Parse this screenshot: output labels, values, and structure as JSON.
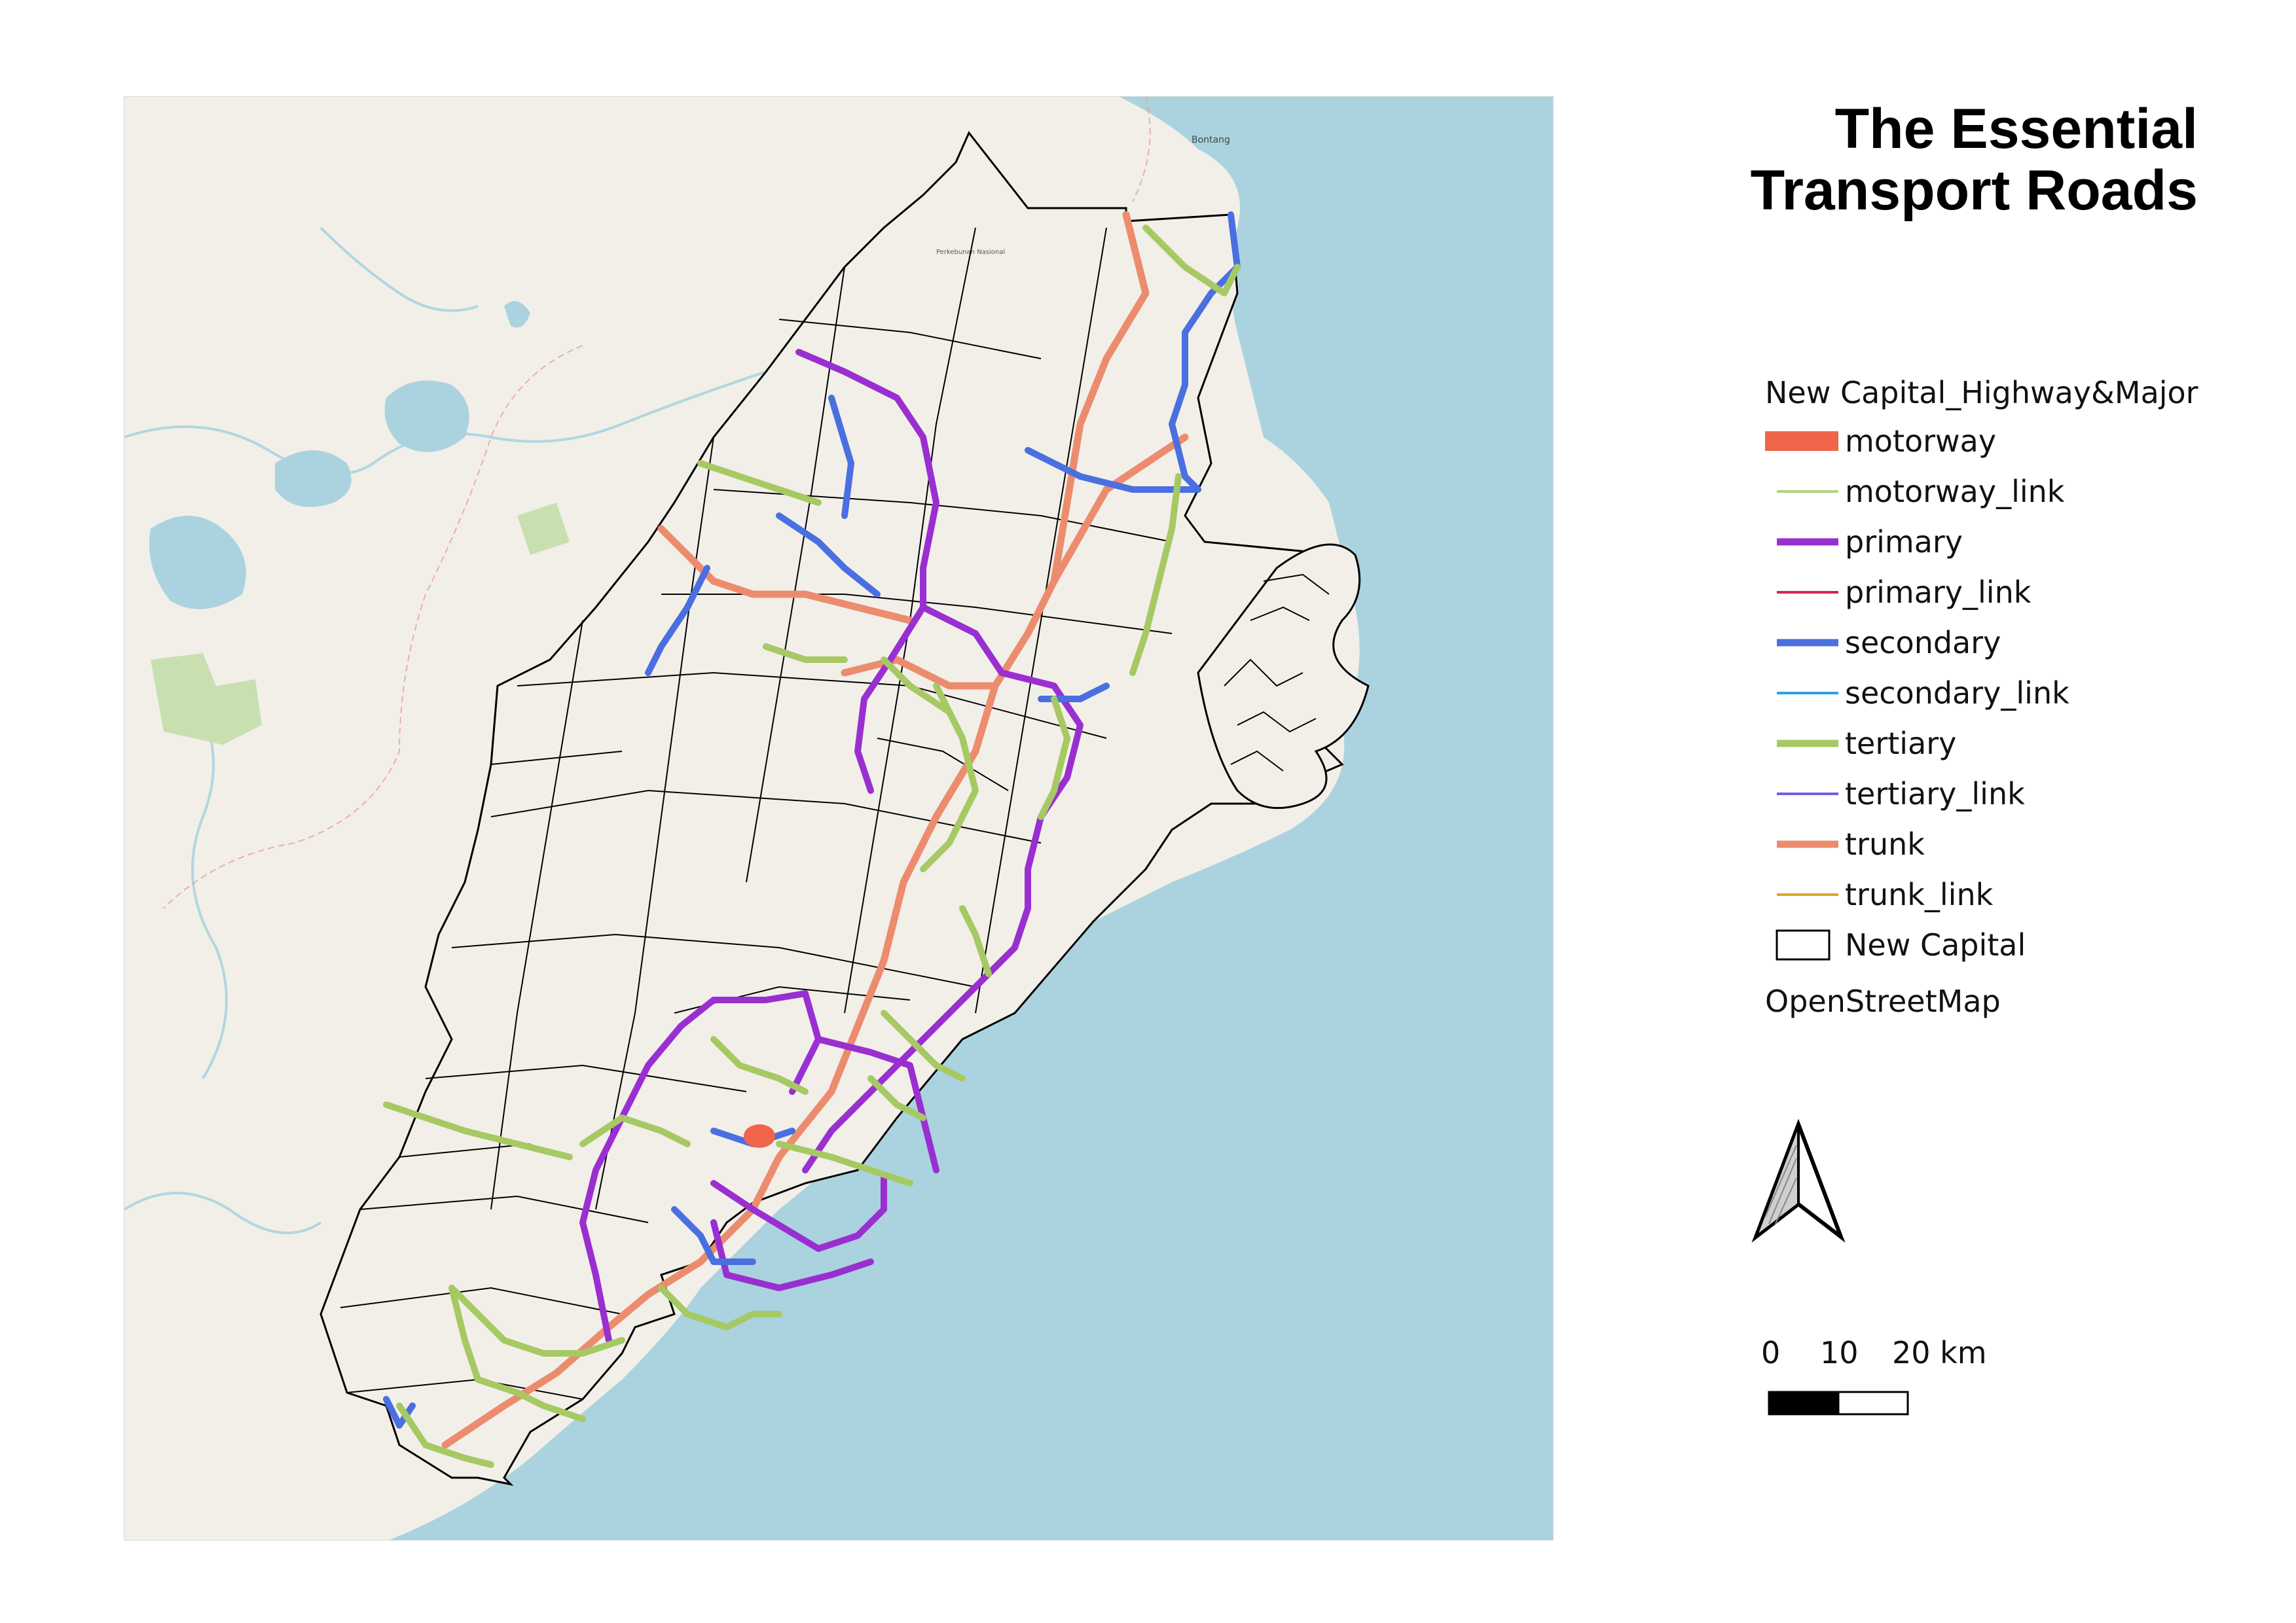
{
  "title": "The Essential\nTransport Roads",
  "legend": {
    "layer_title": "New Capital_Highway&Major",
    "items": [
      {
        "label": "motorway",
        "color": "#f0654a",
        "style": "block"
      },
      {
        "label": "motorway_link",
        "color": "#b5d17a",
        "style": "thin"
      },
      {
        "label": "primary",
        "color": "#9a2fd1",
        "style": "thick"
      },
      {
        "label": "primary_link",
        "color": "#d62250",
        "style": "thin"
      },
      {
        "label": "secondary",
        "color": "#4a6fe0",
        "style": "thick"
      },
      {
        "label": "secondary_link",
        "color": "#2aa5e0",
        "style": "thin"
      },
      {
        "label": "tertiary",
        "color": "#a6c964",
        "style": "thick"
      },
      {
        "label": "tertiary_link",
        "color": "#7a5ae0",
        "style": "thin"
      },
      {
        "label": "trunk",
        "color": "#ec8c6e",
        "style": "thick"
      },
      {
        "label": "trunk_link",
        "color": "#dba62a",
        "style": "thin"
      },
      {
        "label": "New Capital",
        "color": "#000000",
        "style": "polygon"
      }
    ],
    "basemap_label": "OpenStreetMap"
  },
  "scale_bar": {
    "ticks": [
      "0",
      "10",
      "20 km"
    ]
  },
  "map": {
    "sea_color": "#aad3df",
    "land_color": "#f2efe9",
    "basemap_labels": [
      "Bontang",
      "Perkebunan Nasional"
    ]
  }
}
